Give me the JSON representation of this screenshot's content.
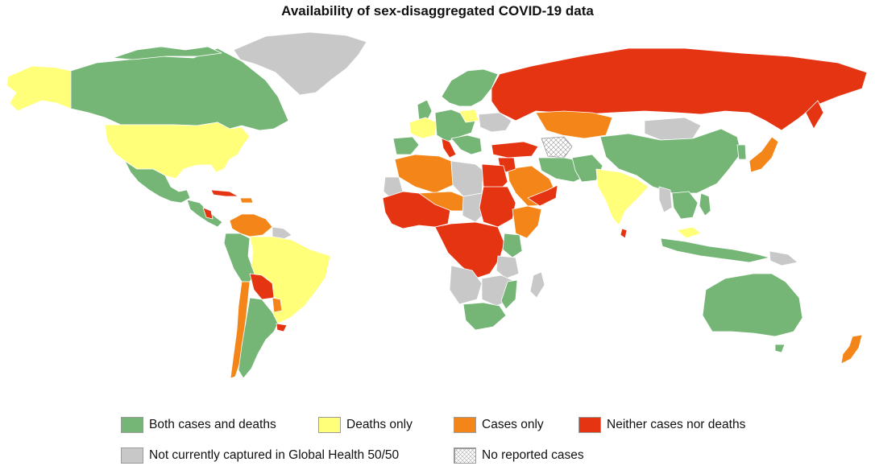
{
  "title": "Availability of sex-disaggregated COVID-19 data",
  "colors": {
    "both": "#75b677",
    "deaths": "#ffff7a",
    "cases": "#f48519",
    "neither": "#e53412",
    "not_captured": "#c8c8c8",
    "no_cases": "#ffffff"
  },
  "legend": [
    {
      "key": "both",
      "label": "Both cases and deaths"
    },
    {
      "key": "deaths",
      "label": "Deaths only"
    },
    {
      "key": "cases",
      "label": "Cases only"
    },
    {
      "key": "neither",
      "label": "Neither cases nor deaths"
    },
    {
      "key": "not_captured",
      "label": "Not currently captured in Global Health 50/50"
    },
    {
      "key": "no_cases",
      "label": "No reported cases"
    }
  ]
}
